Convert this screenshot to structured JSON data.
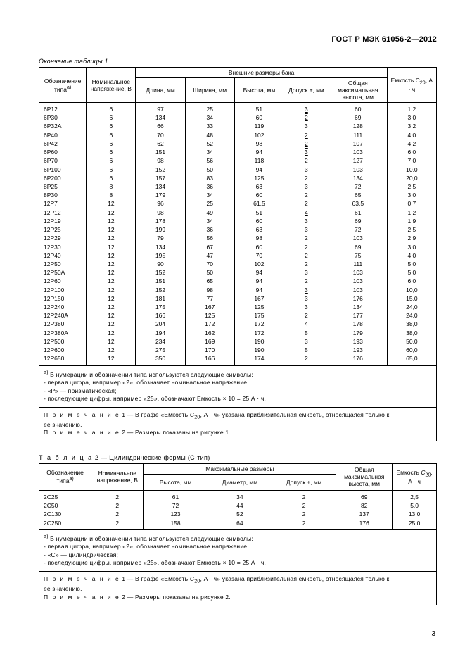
{
  "doc_code": "ГОСТ Р МЭК 61056-2—2012",
  "caption1": "Окончание таблицы 1",
  "caption2_pre": "Т а б л и ц а",
  "caption2_rest": " 2 — Цилиндрические формы (С-тип)",
  "t1": {
    "head": {
      "c1": "Обозначение типа",
      "c1_sup": "а)",
      "c2": "Номинальное напряжение, В",
      "c3": "Внешние размеры бака",
      "c31": "Длина, мм",
      "c32": "Ширина, мм",
      "c33": "Высота, мм",
      "c34": "Допуск ±, мм",
      "c35": "Общая максимальная высота, мм",
      "c4_a": "Емкость С",
      "c4_sub": "20",
      "c4_b": ", А · ч"
    },
    "rows": [
      [
        "6P12",
        "6",
        "97",
        "25",
        "51",
        "3u",
        "60",
        "1,2"
      ],
      [
        "6P30",
        "6",
        "134",
        "34",
        "60",
        "2ou",
        "69",
        "3,0"
      ],
      [
        "6P32A",
        "6",
        "66",
        "33",
        "119",
        "3",
        "128",
        "3,2"
      ],
      [
        "6P40",
        "6",
        "70",
        "48",
        "102",
        "2u",
        "111",
        "4,0"
      ],
      [
        "6P42",
        "6",
        "62",
        "52",
        "98",
        "2u",
        "107",
        "4,2"
      ],
      [
        "6P60",
        "6",
        "151",
        "34",
        "94",
        "3ou",
        "103",
        "6,0"
      ],
      [
        "6P70",
        "6",
        "98",
        "56",
        "118",
        "2",
        "127",
        "7,0"
      ],
      [
        "6P100",
        "6",
        "152",
        "50",
        "94",
        "3",
        "103",
        "10,0"
      ],
      [
        "6P200",
        "6",
        "157",
        "83",
        "125",
        "2",
        "134",
        "20,0"
      ],
      [
        "8P25",
        "8",
        "134",
        "36",
        "63",
        "3",
        "72",
        "2,5"
      ],
      [
        "8P30",
        "8",
        "179",
        "34",
        "60",
        "2",
        "65",
        "3,0"
      ],
      [
        "12P7",
        "12",
        "96",
        "25",
        "61,5",
        "2",
        "63,5",
        "0,7"
      ],
      [
        "12P12",
        "12",
        "98",
        "49",
        "51",
        "4u",
        "61",
        "1,2"
      ],
      [
        "12P19",
        "12",
        "178",
        "34",
        "60",
        "3",
        "69",
        "1,9"
      ],
      [
        "12P25",
        "12",
        "199",
        "36",
        "63",
        "3",
        "72",
        "2,5"
      ],
      [
        "12P29",
        "12",
        "79",
        "56",
        "98",
        "2",
        "103",
        "2,9"
      ],
      [
        "12P30",
        "12",
        "134",
        "67",
        "60",
        "2",
        "69",
        "3,0"
      ],
      [
        "12P40",
        "12",
        "195",
        "47",
        "70",
        "2",
        "75",
        "4,0"
      ],
      [
        "12P50",
        "12",
        "90",
        "70",
        "102",
        "2",
        "111",
        "5,0"
      ],
      [
        "12P50A",
        "12",
        "152",
        "50",
        "94",
        "3",
        "103",
        "5,0"
      ],
      [
        "12P60",
        "12",
        "151",
        "65",
        "94",
        "2",
        "103",
        "6,0"
      ],
      [
        "12P100",
        "12",
        "152",
        "98",
        "94",
        "3u",
        "103",
        "10,0"
      ],
      [
        "12P150",
        "12",
        "181",
        "77",
        "167",
        "3",
        "176",
        "15,0"
      ],
      [
        "12P240",
        "12",
        "175",
        "167",
        "125",
        "3",
        "134",
        "24,0"
      ],
      [
        "12P240A",
        "12",
        "166",
        "125",
        "175",
        "2",
        "177",
        "24,0"
      ],
      [
        "12P380",
        "12",
        "204",
        "172",
        "172",
        "4",
        "178",
        "38,0"
      ],
      [
        "12P380A",
        "12",
        "194",
        "162",
        "172",
        "5",
        "179",
        "38,0"
      ],
      [
        "12P500",
        "12",
        "234",
        "169",
        "190",
        "3",
        "193",
        "50,0"
      ],
      [
        "12P600",
        "12",
        "275",
        "170",
        "190",
        "5",
        "193",
        "60,0"
      ],
      [
        "12P650",
        "12",
        "350",
        "166",
        "174",
        "2",
        "176",
        "65,0"
      ]
    ],
    "note1_sup": "а)",
    "note1_l1": "  В нумерации и обозначении типа используются следующие символы:",
    "note1_l2": "-  первая цифра, например «2», обозначает номинальное напряжение;",
    "note1_l3": "-  «Р» — призматическая;",
    "note1_l4": "-  последующие цифры, например «25», обозначают Емкость × 10 = 25 А · ч.",
    "note2_l1_pre": "П р и м е ч а н и е",
    "note2_l1a": "  1 — В графе «Емкость ",
    "note2_l1b": ", А · ч» указана приблизительная емкость, относящаяся только к",
    "note2_l2": "ее значению.",
    "note2_l3": "  2 — Размеры показаны на рисунке 1."
  },
  "t2": {
    "head": {
      "c1": "Обозначение типа",
      "c1_sup": "а)",
      "c2": "Номинальное напряжение, В",
      "c3": "Максимальные размеры",
      "c31": "Высота, мм",
      "c32": "Диаметр, мм",
      "c33": "Допуск ±, мм",
      "c4": "Общая максимальная высота, мм",
      "c5_a": "Емкость ",
      "c5_b": ", А · ч"
    },
    "rows": [
      [
        "2C25",
        "2",
        "61",
        "34",
        "2",
        "69",
        "2,5"
      ],
      [
        "2C50",
        "2",
        "72",
        "44",
        "2",
        "82",
        "5,0"
      ],
      [
        "2C130",
        "2",
        "123",
        "52",
        "2",
        "137",
        "13,0"
      ],
      [
        "2C250",
        "2",
        "158",
        "64",
        "2",
        "176",
        "25,0"
      ]
    ],
    "note1_l1": "  В нумерации и обозначении типа используются следующие символы:",
    "note1_l2": "-  первая цифра, например «2», обозначает номинальное напряжение;",
    "note1_l3": "-  «С» — цилиндрическая;",
    "note1_l4": "-  последующие цифры, например «25», обозначают Емкость × 10 = 25 А · ч.",
    "note2_l1a": "  1 — В графе «Емкость ",
    "note2_l1b": ", А · ч» указана приблизительная емкость, относящаяся только к",
    "note2_l2": "ее значению.",
    "note2_l3": "  2 — Размеры показаны на рисунке 2."
  },
  "page_num": "3",
  "c20_a": "С",
  "c20_b": "20"
}
